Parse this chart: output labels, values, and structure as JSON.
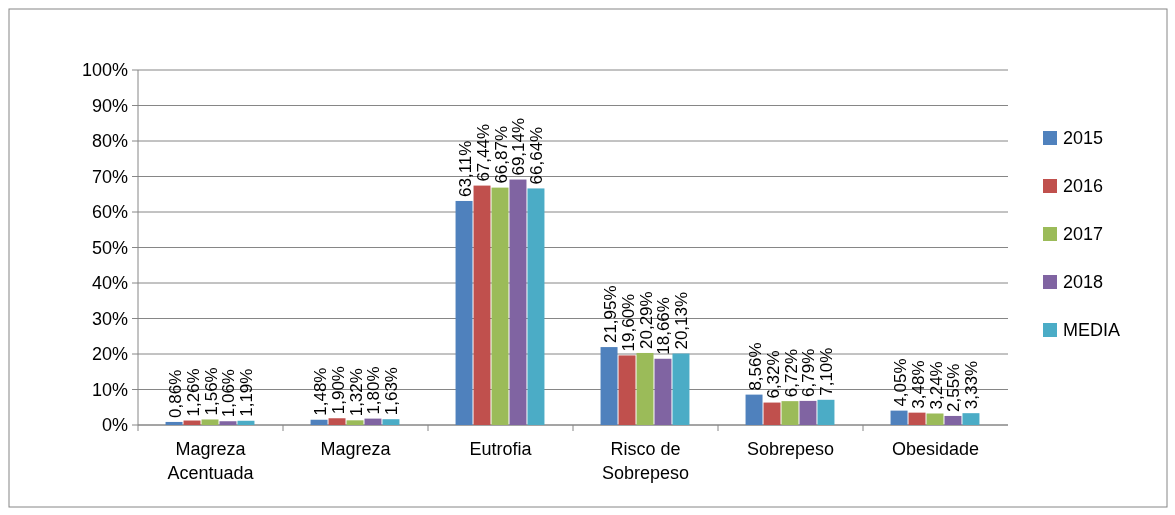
{
  "chart_data": {
    "type": "bar",
    "categories": [
      "Magreza Acentuada",
      "Magreza",
      "Eutrofia",
      "Risco de Sobrepeso",
      "Sobrepeso",
      "Obesidade"
    ],
    "series": [
      {
        "name": "2015",
        "color": "#4f81bd",
        "values": [
          0.86,
          1.48,
          63.11,
          21.95,
          8.56,
          4.05
        ],
        "value_labels": [
          "0,86%",
          "1,48%",
          "63,11%",
          "21,95%",
          "8,56%",
          "4,05%"
        ]
      },
      {
        "name": "2016",
        "color": "#c0504d",
        "values": [
          1.26,
          1.9,
          67.44,
          19.6,
          6.32,
          3.48
        ],
        "value_labels": [
          "1,26%",
          "1,90%",
          "67,44%",
          "19,60%",
          "6,32%",
          "3,48%"
        ]
      },
      {
        "name": "2017",
        "color": "#9bbb59",
        "values": [
          1.56,
          1.32,
          66.87,
          20.29,
          6.72,
          3.24
        ],
        "value_labels": [
          "1,56%",
          "1,32%",
          "66,87%",
          "20,29%",
          "6,72%",
          "3,24%"
        ]
      },
      {
        "name": "2018",
        "color": "#8064a2",
        "values": [
          1.06,
          1.8,
          69.14,
          18.66,
          6.79,
          2.55
        ],
        "value_labels": [
          "1,06%",
          "1,80%",
          "69,14%",
          "18,66%",
          "6,79%",
          "2,55%"
        ]
      },
      {
        "name": "MEDIA",
        "color": "#4bacc6",
        "values": [
          1.19,
          1.63,
          66.64,
          20.13,
          7.1,
          3.33
        ],
        "value_labels": [
          "1,19%",
          "1,63%",
          "66,64%",
          "20,13%",
          "7,10%",
          "3,33%"
        ]
      }
    ],
    "ylim": [
      0,
      100
    ],
    "yticks": [
      {
        "value": 0,
        "label": "0%"
      },
      {
        "value": 10,
        "label": "10%"
      },
      {
        "value": 20,
        "label": "20%"
      },
      {
        "value": 30,
        "label": "30%"
      },
      {
        "value": 40,
        "label": "40%"
      },
      {
        "value": 50,
        "label": "50%"
      },
      {
        "value": 60,
        "label": "60%"
      },
      {
        "value": 70,
        "label": "70%"
      },
      {
        "value": 80,
        "label": "80%"
      },
      {
        "value": 90,
        "label": "90%"
      },
      {
        "value": 100,
        "label": "100%"
      }
    ],
    "grid": "y",
    "legend": "right"
  }
}
